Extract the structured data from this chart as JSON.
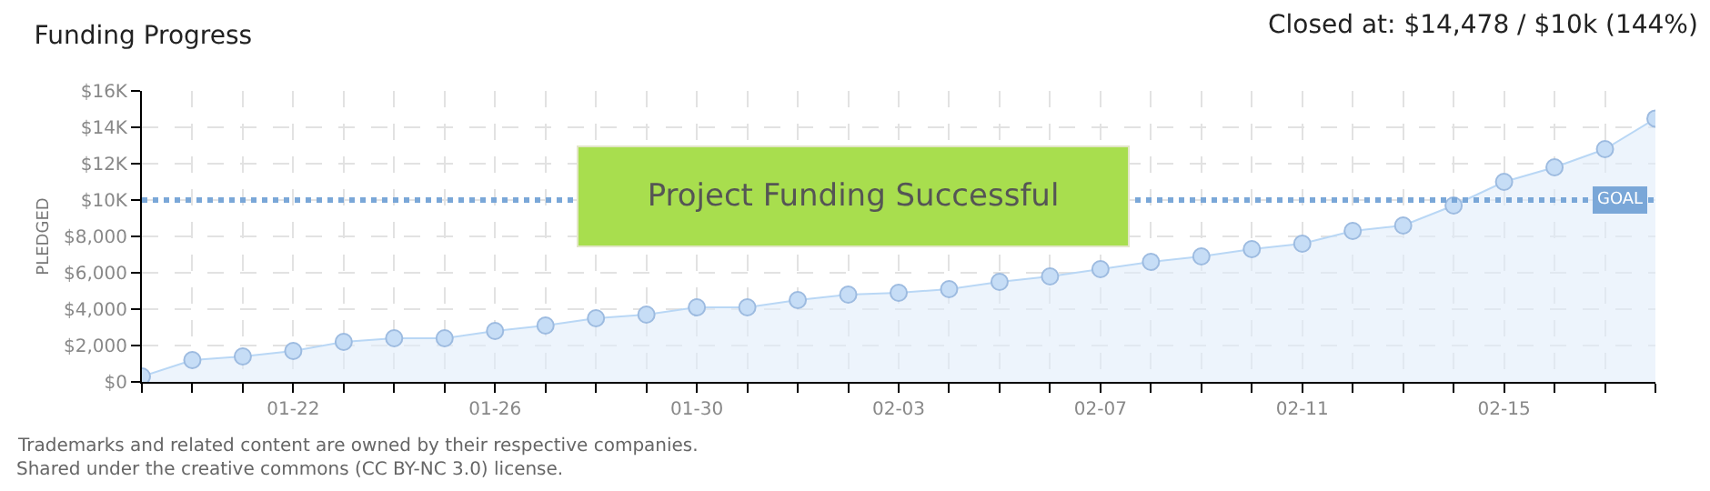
{
  "chart_data": {
    "type": "area",
    "title": "Funding Progress",
    "subtitle": "Closed at: $14,478 / $10k (144%)",
    "ylabel": "PLEDGED",
    "x": [
      "--01-19",
      "--01-20",
      "--01-21",
      "--01-22",
      "--01-23",
      "--01-24",
      "--01-25",
      "--01-26",
      "--01-27",
      "--01-28",
      "--01-29",
      "--01-30",
      "--01-31",
      "--02-01",
      "--02-02",
      "--02-03",
      "--02-04",
      "--02-05",
      "--02-06",
      "--02-07",
      "--02-08",
      "--02-09",
      "--02-10",
      "--02-11",
      "--02-12",
      "--02-13",
      "--02-14",
      "--02-15",
      "--02-16",
      "--02-17",
      "--02-18"
    ],
    "series": [
      {
        "color": "#b9d7f5",
        "values": [
          300,
          1200,
          1400,
          1700,
          2200,
          2400,
          2400,
          2800,
          3100,
          3500,
          3700,
          4100,
          4100,
          4500,
          4800,
          4900,
          5100,
          5500,
          5800,
          6200,
          6600,
          6900,
          7300,
          7600,
          8300,
          8600,
          9700,
          11000,
          11800,
          12800,
          14478
        ]
      }
    ],
    "xlim": [
      "--01-19",
      "--02-18"
    ],
    "xticks": [
      {
        "value": "--01-19",
        "label": null
      },
      {
        "value": "--01-20",
        "label": null
      },
      {
        "value": "--01-21",
        "label": null
      },
      {
        "value": "--01-22",
        "label": "01-22"
      },
      {
        "value": "--01-23",
        "label": null
      },
      {
        "value": "--01-24",
        "label": null
      },
      {
        "value": "--01-25",
        "label": null
      },
      {
        "value": "--01-26",
        "label": "01-26"
      },
      {
        "value": "--01-27",
        "label": null
      },
      {
        "value": "--01-28",
        "label": null
      },
      {
        "value": "--01-29",
        "label": null
      },
      {
        "value": "--01-30",
        "label": "01-30"
      },
      {
        "value": "--01-31",
        "label": null
      },
      {
        "value": "--02-01",
        "label": null
      },
      {
        "value": "--02-02",
        "label": null
      },
      {
        "value": "--02-03",
        "label": "02-03"
      },
      {
        "value": "--02-04",
        "label": null
      },
      {
        "value": "--02-05",
        "label": null
      },
      {
        "value": "--02-06",
        "label": null
      },
      {
        "value": "--02-07",
        "label": "02-07"
      },
      {
        "value": "--02-08",
        "label": null
      },
      {
        "value": "--02-09",
        "label": null
      },
      {
        "value": "--02-10",
        "label": null
      },
      {
        "value": "--02-11",
        "label": "02-11"
      },
      {
        "value": "--02-12",
        "label": null
      },
      {
        "value": "--02-13",
        "label": null
      },
      {
        "value": "--02-14",
        "label": null
      },
      {
        "value": "--02-15",
        "label": "02-15"
      },
      {
        "value": "--02-16",
        "label": null
      },
      {
        "value": "--02-17",
        "label": null
      },
      {
        "value": "--02-18",
        "label": null
      }
    ],
    "ylim": [
      0,
      16000
    ],
    "yticks": [
      {
        "value": 0,
        "label": "$0"
      },
      {
        "value": 2000,
        "label": "$2,000"
      },
      {
        "value": 4000,
        "label": "$4,000"
      },
      {
        "value": 6000,
        "label": "$6,000"
      },
      {
        "value": 8000,
        "label": "$8,000"
      },
      {
        "value": 10000,
        "label": "$10K"
      },
      {
        "value": 12000,
        "label": "$12K"
      },
      {
        "value": 14000,
        "label": "$14K"
      },
      {
        "value": 16000,
        "label": "$16K"
      }
    ],
    "ref_lines": [
      {
        "axis": "y",
        "value": 10000,
        "label": "GOAL",
        "color": "#7aa7d8",
        "line_style": "dotted"
      }
    ],
    "annotations": [
      "Project Funding Successful",
      "Trademarks and related content are owned by their respective companies.",
      "Shared under the creative commons (CC BY-NC 3.0) license."
    ],
    "grid": true,
    "marker": "circle",
    "line_style": "solid"
  }
}
